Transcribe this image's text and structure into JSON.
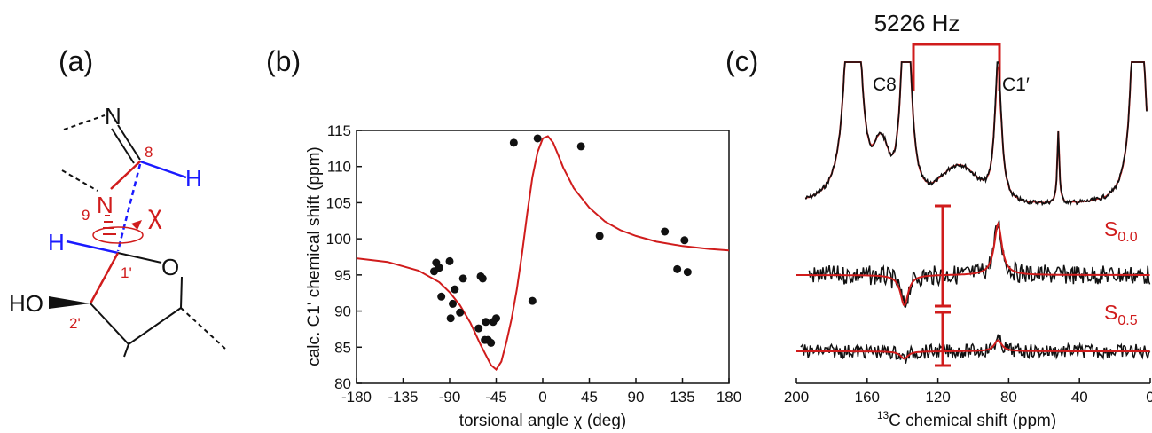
{
  "colors": {
    "accent": "#d01c1c",
    "blue": "#1a1aff",
    "black": "#111111"
  },
  "panel_a": {
    "label": "(a)",
    "atoms": {
      "N_top": "N",
      "H_right": "H",
      "num8": "8",
      "N9": "N",
      "num9": "9",
      "chi": "χ",
      "H_left": "H",
      "num1p": "1'",
      "O": "O",
      "HO": "HO",
      "num2p": "2'"
    }
  },
  "panel_b": {
    "label": "(b)"
  },
  "panel_c": {
    "label": "(c)",
    "freq_label": "5226 Hz",
    "peak_left": "C8",
    "peak_right": "C1′",
    "s00_main": "S",
    "s00_sub": "0.0",
    "s05_main": "S",
    "s05_sub": "0.5",
    "xlabel_sup": "13",
    "xlabel_rest": "C chemical shift (ppm)",
    "xticks": [
      "200",
      "160",
      "120",
      "80",
      "40",
      "0"
    ]
  },
  "chart_data": [
    {
      "type": "scatter",
      "xlabel": "torsional angle χ (deg)",
      "ylabel": "calc. C1' chemical shift (ppm)",
      "xlim": [
        -180,
        180
      ],
      "ylim": [
        80,
        115
      ],
      "xticks": [
        -180,
        -135,
        -90,
        -45,
        0,
        45,
        90,
        135,
        180
      ],
      "yticks": [
        80,
        85,
        90,
        95,
        100,
        105,
        110,
        115
      ],
      "grid": false,
      "points": [
        [
          -105,
          95.5
        ],
        [
          -103,
          96.7
        ],
        [
          -100,
          96.0
        ],
        [
          -98,
          92.0
        ],
        [
          -90,
          96.9
        ],
        [
          -89,
          89.0
        ],
        [
          -87,
          91.0
        ],
        [
          -85,
          93.0
        ],
        [
          -80,
          89.8
        ],
        [
          -77,
          94.5
        ],
        [
          -62,
          87.6
        ],
        [
          -60,
          94.8
        ],
        [
          -58,
          94.5
        ],
        [
          -56,
          86.0
        ],
        [
          -55,
          88.5
        ],
        [
          -53,
          86.0
        ],
        [
          -50,
          85.6
        ],
        [
          -48,
          88.5
        ],
        [
          -45,
          89.0
        ],
        [
          -28,
          113.3
        ],
        [
          -10,
          91.4
        ],
        [
          -5,
          113.9
        ],
        [
          37,
          112.8
        ],
        [
          55,
          100.4
        ],
        [
          118,
          101.0
        ],
        [
          130,
          95.8
        ],
        [
          137,
          99.8
        ],
        [
          140,
          95.4
        ]
      ],
      "fit_curve": [
        [
          -180,
          97.3
        ],
        [
          -150,
          96.8
        ],
        [
          -120,
          95.6
        ],
        [
          -100,
          94.0
        ],
        [
          -90,
          92.6
        ],
        [
          -80,
          90.8
        ],
        [
          -70,
          88.4
        ],
        [
          -60,
          85.3
        ],
        [
          -50,
          82.5
        ],
        [
          -45,
          81.9
        ],
        [
          -40,
          83.0
        ],
        [
          -35,
          85.8
        ],
        [
          -30,
          89.0
        ],
        [
          -25,
          93.0
        ],
        [
          -20,
          98.0
        ],
        [
          -15,
          103.5
        ],
        [
          -10,
          108.5
        ],
        [
          -5,
          112.0
        ],
        [
          0,
          113.9
        ],
        [
          5,
          114.2
        ],
        [
          10,
          113.3
        ],
        [
          15,
          111.6
        ],
        [
          20,
          109.8
        ],
        [
          30,
          107.0
        ],
        [
          45,
          104.3
        ],
        [
          60,
          102.4
        ],
        [
          75,
          101.2
        ],
        [
          90,
          100.4
        ],
        [
          110,
          99.6
        ],
        [
          135,
          99.0
        ],
        [
          160,
          98.6
        ],
        [
          180,
          98.4
        ]
      ]
    },
    {
      "type": "line",
      "title": "5226 Hz",
      "xlabel": "13C chemical shift (ppm)",
      "xlim": [
        200,
        0
      ],
      "xticks": [
        200,
        160,
        120,
        80,
        40,
        0
      ],
      "annotations": [
        "C8",
        "C1′",
        "S0.0",
        "S0.5"
      ],
      "series": [
        {
          "name": "S0.0",
          "fit_peaks": [
            {
              "x": 139,
              "amp": -0.33
            },
            {
              "x": 86,
              "amp": 0.55
            }
          ]
        },
        {
          "name": "S0.5",
          "fit_peaks": [
            {
              "x": 139,
              "amp": -0.08
            },
            {
              "x": 86,
              "amp": 0.12
            }
          ]
        }
      ]
    }
  ]
}
